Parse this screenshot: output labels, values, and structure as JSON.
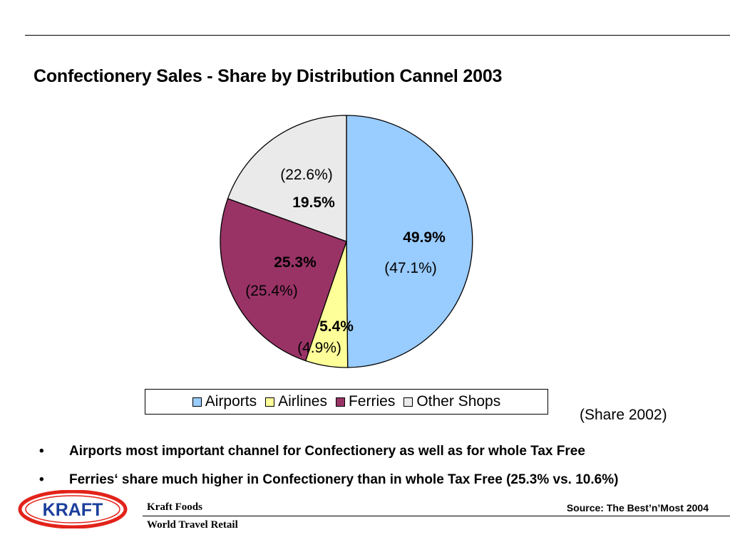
{
  "slide": {
    "title": "Confectionery Sales - Share by Distribution Cannel 2003",
    "share_note": "(Share 2002)",
    "bullets": [
      "Airports most important channel for Confectionery as well as for whole Tax Free",
      "Ferries‘ share much higher in Confectionery than in whole Tax Free (25.3% vs. 10.6%)"
    ],
    "bullet_symbol": "•"
  },
  "footer": {
    "company": "Kraft Foods",
    "division": "World Travel Retail",
    "source": "Source: The Best’n’Most 2004",
    "logo_text": "KRAFT",
    "logo_colors": {
      "ring": "#e2231a",
      "text": "#1a3e9c"
    }
  },
  "chart_data": {
    "type": "pie",
    "start": "12 o'clock",
    "direction": "clockwise",
    "legend_position": "bottom",
    "slices": [
      {
        "name": "Airports",
        "value": 49.9,
        "label": "49.9%",
        "prev_label": "(47.1%)",
        "color": "#99ccff"
      },
      {
        "name": "Airlines",
        "value": 5.4,
        "label": "5.4%",
        "prev_label": "(4.9%)",
        "color": "#ffff99"
      },
      {
        "name": "Ferries",
        "value": 25.3,
        "label": "25.3%",
        "prev_label": "(25.4%)",
        "color": "#993366"
      },
      {
        "name": "Other Shops",
        "value": 19.5,
        "label": "19.5%",
        "prev_label": "(22.6%)",
        "color": "#eaeaea"
      }
    ]
  }
}
